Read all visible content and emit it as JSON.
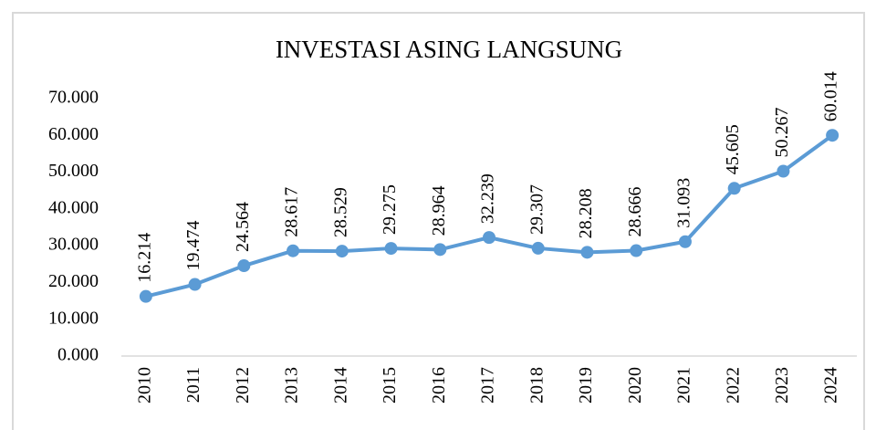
{
  "chart_data": {
    "type": "line",
    "title": "INVESTASI ASING LANGSUNG",
    "categories": [
      "2010",
      "2011",
      "2012",
      "2013",
      "2014",
      "2015",
      "2016",
      "2017",
      "2018",
      "2019",
      "2020",
      "2021",
      "2022",
      "2023",
      "2024"
    ],
    "values": [
      16214,
      19474,
      24564,
      28617,
      28529,
      29275,
      28964,
      32239,
      29307,
      28208,
      28666,
      31093,
      45605,
      50267,
      60014
    ],
    "value_labels": [
      "16.214",
      "19.474",
      "24.564",
      "28.617",
      "28.529",
      "29.275",
      "28.964",
      "32.239",
      "29.307",
      "28.208",
      "28.666",
      "31.093",
      "45.605",
      "50.267",
      "60.014"
    ],
    "color": "#5b9bd5",
    "ylim": [
      0,
      70000
    ],
    "yticks": [
      {
        "value": 0,
        "label": "0.000"
      },
      {
        "value": 10000,
        "label": "10.000"
      },
      {
        "value": 20000,
        "label": "20.000"
      },
      {
        "value": 30000,
        "label": "30.000"
      },
      {
        "value": 40000,
        "label": "40.000"
      },
      {
        "value": 50000,
        "label": "50.000"
      },
      {
        "value": 60000,
        "label": "60.000"
      },
      {
        "value": 70000,
        "label": "70.000"
      }
    ],
    "grid": false
  }
}
